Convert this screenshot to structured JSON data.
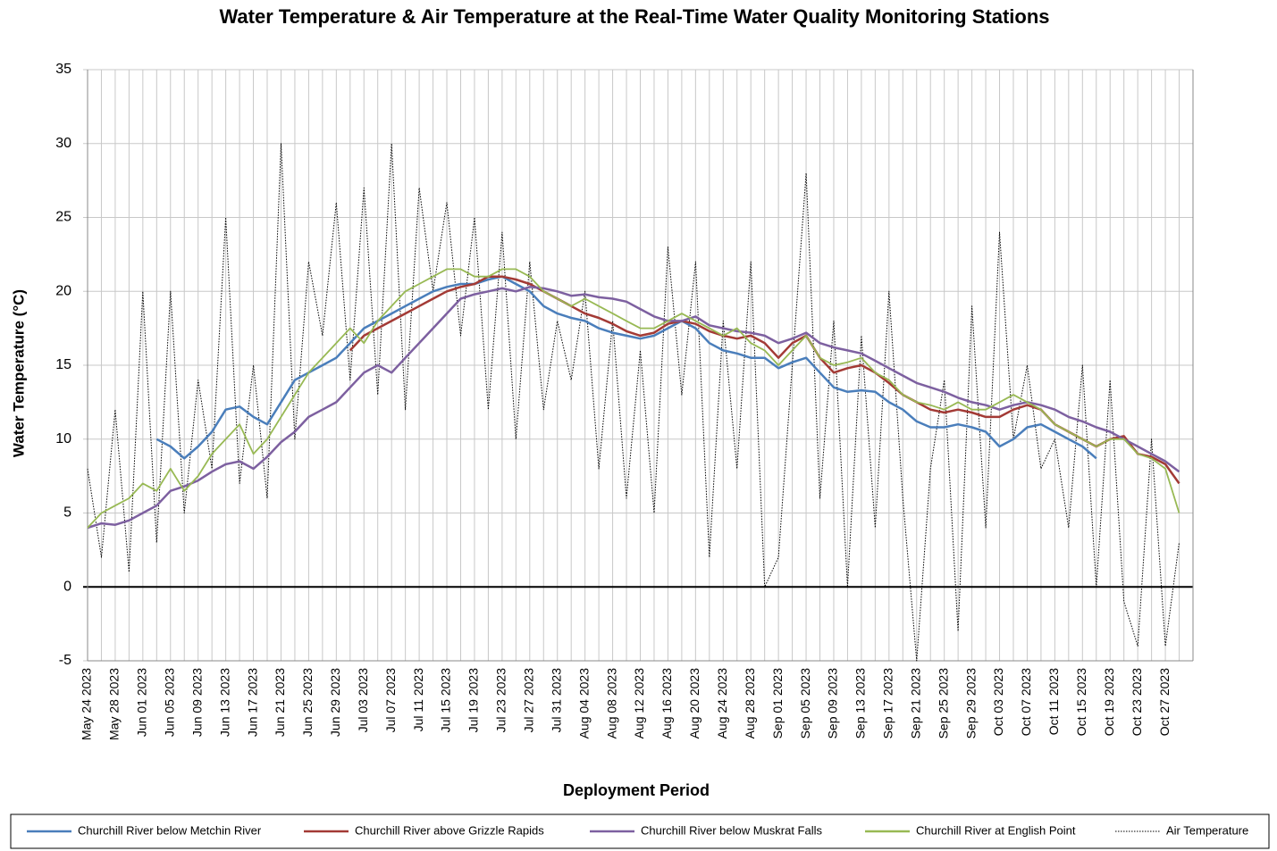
{
  "chart_data": {
    "type": "line",
    "title": "Water Temperature & Air Temperature at the Real-Time Water Quality Monitoring Stations",
    "x_label": "Deployment Period",
    "y_label": "Water Temperature (°C)",
    "categories": [
      "May 24 2023",
      null,
      "May 28 2023",
      null,
      "Jun 01 2023",
      null,
      "Jun 05 2023",
      null,
      "Jun 09 2023",
      null,
      "Jun 13 2023",
      null,
      "Jun 17 2023",
      null,
      "Jun 21 2023",
      null,
      "Jun 25 2023",
      null,
      "Jun 29 2023",
      null,
      "Jul 03 2023",
      null,
      "Jul 07 2023",
      null,
      "Jul 11 2023",
      null,
      "Jul 15 2023",
      null,
      "Jul 19 2023",
      null,
      "Jul 23 2023",
      null,
      "Jul 27 2023",
      null,
      "Jul 31 2023",
      null,
      "Aug 04 2023",
      null,
      "Aug 08 2023",
      null,
      "Aug 12 2023",
      null,
      "Aug 16 2023",
      null,
      "Aug 20 2023",
      null,
      "Aug 24 2023",
      null,
      "Aug 28 2023",
      null,
      "Sep 01 2023",
      null,
      "Sep 05 2023",
      null,
      "Sep 09 2023",
      null,
      "Sep 13 2023",
      null,
      "Sep 17 2023",
      null,
      "Sep 21 2023",
      null,
      "Sep 25 2023",
      null,
      "Sep 29 2023",
      null,
      "Oct 03 2023",
      null,
      "Oct 07 2023",
      null,
      "Oct 11 2023",
      null,
      "Oct 15 2023",
      null,
      "Oct 19 2023",
      null,
      "Oct 23 2023",
      null,
      "Oct 27 2023",
      null
    ],
    "series": [
      {
        "name": "Churchill River below Metchin River",
        "color": "#4a7ebb",
        "values": [
          null,
          null,
          null,
          null,
          null,
          10,
          9.5,
          8.7,
          9.5,
          10.5,
          12,
          12.2,
          11.5,
          11,
          12.5,
          14,
          14.5,
          15,
          15.5,
          16.5,
          17.5,
          18,
          18.5,
          19,
          19.5,
          20,
          20.3,
          20.5,
          20.5,
          20.8,
          21,
          20.5,
          20,
          19,
          18.5,
          18.2,
          18,
          17.5,
          17.2,
          17,
          16.8,
          17,
          17.5,
          18,
          17.5,
          16.5,
          16,
          15.8,
          15.5,
          15.5,
          14.8,
          15.2,
          15.5,
          14.5,
          13.5,
          13.2,
          13.3,
          13.2,
          12.5,
          12,
          11.2,
          10.8,
          10.8,
          11,
          10.8,
          10.5,
          9.5,
          10,
          10.8,
          11,
          10.5,
          10,
          9.5,
          8.7,
          null,
          null,
          null,
          null,
          null,
          null
        ]
      },
      {
        "name": "Churchill River above Grizzle Rapids",
        "color": "#a33a35",
        "values": [
          null,
          null,
          null,
          null,
          null,
          null,
          null,
          null,
          null,
          null,
          null,
          null,
          null,
          null,
          null,
          null,
          null,
          null,
          null,
          16,
          17,
          17.5,
          18,
          18.5,
          19,
          19.5,
          20,
          20.3,
          20.5,
          21,
          21,
          20.8,
          20.5,
          20,
          19.5,
          19,
          18.5,
          18.2,
          17.8,
          17.3,
          17,
          17.2,
          17.8,
          18,
          17.8,
          17.3,
          17,
          16.8,
          17,
          16.5,
          15.5,
          16.5,
          17,
          15.5,
          14.5,
          14.8,
          15,
          14.5,
          13.8,
          13,
          12.5,
          12,
          11.8,
          12,
          11.8,
          11.5,
          11.5,
          12,
          12.3,
          12,
          11,
          10.5,
          10,
          9.5,
          10,
          10.2,
          9,
          8.8,
          8.3,
          7
        ]
      },
      {
        "name": "Churchill River below Muskrat Falls",
        "color": "#7d60a0",
        "values": [
          4,
          4.3,
          4.2,
          4.5,
          5,
          5.5,
          6.5,
          6.8,
          7.2,
          7.8,
          8.3,
          8.5,
          8,
          8.8,
          9.8,
          10.5,
          11.5,
          12,
          12.5,
          13.5,
          14.5,
          15,
          14.5,
          15.5,
          16.5,
          17.5,
          18.5,
          19.5,
          19.8,
          20,
          20.2,
          20,
          20.3,
          20.2,
          20,
          19.7,
          19.8,
          19.6,
          19.5,
          19.3,
          18.8,
          18.3,
          18,
          18,
          18.3,
          17.7,
          17.5,
          17.3,
          17.2,
          17,
          16.5,
          16.8,
          17.2,
          16.5,
          16.2,
          16,
          15.8,
          15.3,
          14.8,
          14.3,
          13.8,
          13.5,
          13.2,
          12.8,
          12.5,
          12.3,
          12,
          12.3,
          12.5,
          12.3,
          12,
          11.5,
          11.2,
          10.8,
          10.5,
          10,
          9.5,
          9,
          8.5,
          7.8
        ]
      },
      {
        "name": "Churchill River at English Point",
        "color": "#98b954",
        "values": [
          4,
          5,
          5.5,
          6,
          7,
          6.5,
          8,
          6.5,
          7.5,
          9,
          10,
          11,
          9,
          10,
          11.5,
          13,
          14.5,
          15.5,
          16.5,
          17.5,
          16.5,
          18,
          19,
          20,
          20.5,
          21,
          21.5,
          21.5,
          21,
          21,
          21.5,
          21.5,
          21,
          20,
          19.5,
          19,
          19.5,
          19,
          18.5,
          18,
          17.5,
          17.5,
          18,
          18.5,
          18,
          17.5,
          17,
          17.5,
          16.5,
          16,
          15,
          16,
          17,
          15.5,
          15,
          15.2,
          15.5,
          14.5,
          14,
          13,
          12.5,
          12.3,
          12,
          12.5,
          12,
          12,
          12.5,
          13,
          12.5,
          12,
          11,
          10.5,
          10,
          9.5,
          10,
          10,
          9,
          8.7,
          8,
          5
        ]
      },
      {
        "name": "Air Temperature",
        "color": "#000000",
        "line_style": "dotted",
        "values": [
          8,
          2,
          12,
          1,
          20,
          3,
          20,
          5,
          14,
          8,
          25,
          7,
          15,
          6,
          30,
          10,
          22,
          17,
          26,
          14,
          27,
          13,
          30,
          12,
          27,
          20,
          26,
          17,
          25,
          12,
          24,
          10,
          22,
          12,
          18,
          14,
          20,
          8,
          18,
          6,
          16,
          5,
          23,
          13,
          22,
          2,
          18,
          8,
          22,
          0,
          2,
          15,
          28,
          6,
          18,
          0,
          17,
          4,
          20,
          6,
          -5,
          8,
          14,
          -3,
          19,
          4,
          24,
          10,
          15,
          8,
          10,
          4,
          15,
          0,
          14,
          -1,
          -4,
          10,
          -4,
          3
        ]
      }
    ],
    "ylim": [
      -5,
      35
    ],
    "yticks": [
      -5,
      0,
      5,
      10,
      15,
      20,
      25,
      30,
      35
    ],
    "grid": true,
    "legend": "bottom"
  }
}
